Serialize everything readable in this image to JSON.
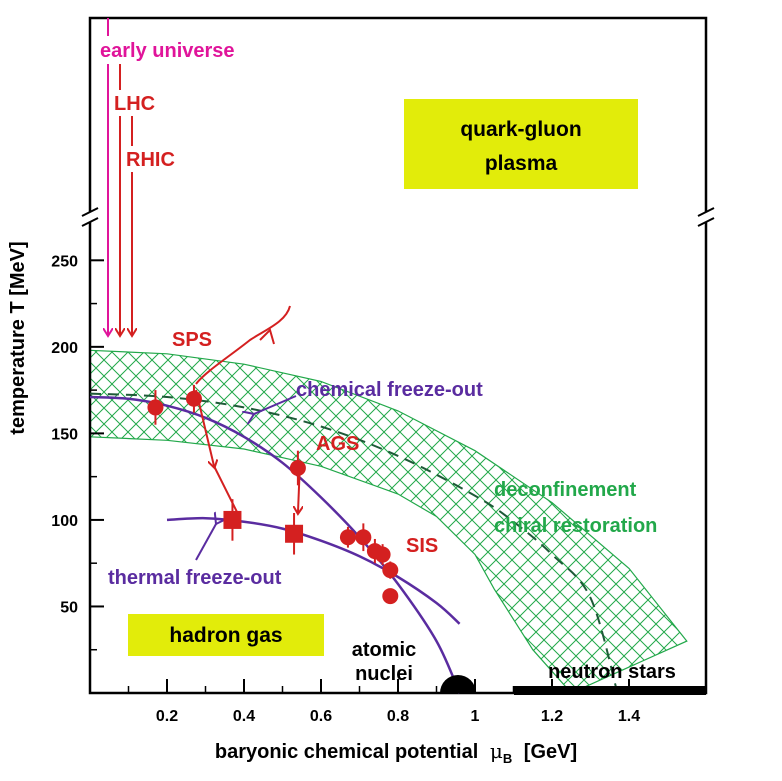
{
  "chart_data": {
    "type": "scatter",
    "xlabel": "baryonic chemical potential",
    "xlabel_symbol": "μ",
    "xlabel_sub": "B",
    "xlabel_unit": "[GeV]",
    "ylabel": "temperature T [MeV]",
    "xlim": [
      0,
      1.6
    ],
    "ylim": [
      0,
      260
    ],
    "y_axis_break": true,
    "x_ticks": [
      "0.2",
      "0.4",
      "0.6",
      "0.8",
      "1",
      "1.2",
      "1.4"
    ],
    "x_tick_values": [
      0.2,
      0.4,
      0.6,
      0.8,
      1.0,
      1.2,
      1.4
    ],
    "y_ticks": [
      "50",
      "100",
      "150",
      "200",
      "250"
    ],
    "y_tick_values": [
      50,
      100,
      150,
      200,
      250
    ],
    "colors": {
      "accelerator": "#d42020",
      "curve": "#5a2ca0",
      "phase": "#22a84a",
      "early": "#e0149a",
      "box": "#e2ec0a",
      "axis": "#000000"
    },
    "early_universe_label": "early universe",
    "accelerator_labels": [
      "LHC",
      "RHIC",
      "SPS",
      "AGS",
      "SIS"
    ],
    "region_labels": {
      "qgp_line1": "quark-gluon",
      "qgp_line2": "plasma",
      "hadron_gas": "hadron gas",
      "neutron_stars": "neutron stars",
      "atomic_line1": "atomic",
      "atomic_line2": "nuclei",
      "deconfinement": "deconfinement",
      "chiral": "chiral restoration"
    },
    "curve_labels": {
      "chemical": "chemical freeze-out",
      "thermal": "thermal freeze-out"
    },
    "chemical_freeze_out_points": [
      {
        "x": 0.17,
        "y": 165,
        "yerr": 10
      },
      {
        "x": 0.27,
        "y": 170,
        "yerr": 8
      },
      {
        "x": 0.54,
        "y": 130,
        "yerr": 10
      },
      {
        "x": 0.67,
        "y": 90,
        "yerr": 6
      },
      {
        "x": 0.71,
        "y": 90,
        "yerr": 8
      },
      {
        "x": 0.74,
        "y": 82,
        "yerr": 7
      },
      {
        "x": 0.76,
        "y": 80,
        "yerr": 6
      },
      {
        "x": 0.78,
        "y": 71,
        "yerr": 5
      },
      {
        "x": 0.78,
        "y": 56,
        "yerr": 4
      }
    ],
    "thermal_freeze_out_points": [
      {
        "x": 0.37,
        "y": 100,
        "yerr": 12
      },
      {
        "x": 0.53,
        "y": 92,
        "yerr": 12
      }
    ],
    "chemical_freeze_out_curve": [
      [
        0.0,
        171
      ],
      [
        0.1,
        170
      ],
      [
        0.2,
        166
      ],
      [
        0.3,
        159
      ],
      [
        0.4,
        148
      ],
      [
        0.5,
        133
      ],
      [
        0.6,
        113
      ],
      [
        0.7,
        90
      ],
      [
        0.8,
        63
      ],
      [
        0.9,
        30
      ],
      [
        0.96,
        0
      ]
    ],
    "thermal_freeze_out_curve": [
      [
        0.2,
        100
      ],
      [
        0.3,
        101
      ],
      [
        0.4,
        99
      ],
      [
        0.5,
        95
      ],
      [
        0.6,
        88
      ],
      [
        0.7,
        79
      ],
      [
        0.8,
        67
      ],
      [
        0.9,
        52
      ],
      [
        0.96,
        40
      ]
    ],
    "deconfinement_dashed_curve": [
      [
        0.0,
        173
      ],
      [
        0.2,
        171
      ],
      [
        0.4,
        165
      ],
      [
        0.6,
        154
      ],
      [
        0.8,
        137
      ],
      [
        1.0,
        114
      ],
      [
        1.1,
        99
      ],
      [
        1.2,
        80
      ],
      [
        1.3,
        55
      ],
      [
        1.37,
        0
      ]
    ],
    "hatched_band_upper": [
      [
        0.0,
        198
      ],
      [
        0.2,
        196
      ],
      [
        0.4,
        190
      ],
      [
        0.6,
        180
      ],
      [
        0.8,
        163
      ],
      [
        1.0,
        140
      ],
      [
        1.2,
        110
      ],
      [
        1.4,
        72
      ],
      [
        1.55,
        30
      ]
    ],
    "hatched_band_lower": [
      [
        0.0,
        148
      ],
      [
        0.2,
        146
      ],
      [
        0.4,
        141
      ],
      [
        0.6,
        131
      ],
      [
        0.8,
        115
      ],
      [
        0.9,
        102
      ],
      [
        1.0,
        80
      ],
      [
        1.05,
        60
      ],
      [
        1.15,
        25
      ],
      [
        1.25,
        0
      ]
    ]
  }
}
